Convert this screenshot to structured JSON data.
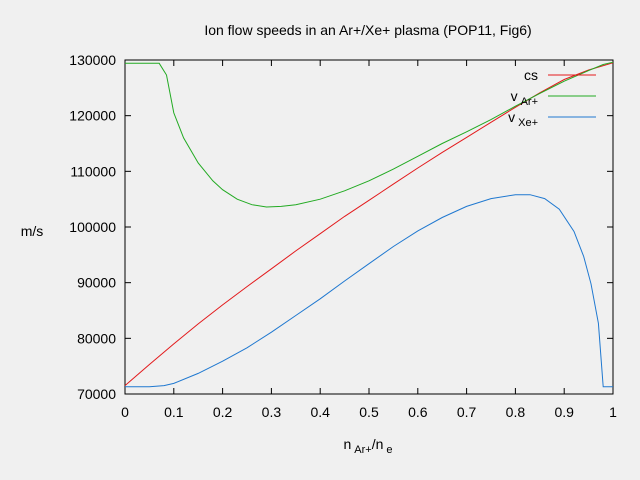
{
  "chart_data": {
    "type": "line",
    "title": "Ion flow speeds in an Ar+/Xe+ plasma (POP11, Fig6)",
    "ylabel": "m/s",
    "xlabel_parts": {
      "n1": "n",
      "sub1": "Ar+",
      "sep": "/n",
      "sub2": "e"
    },
    "xlim": [
      0,
      1
    ],
    "ylim": [
      70000,
      130000
    ],
    "x_ticks": [
      "0",
      "0.1",
      "0.2",
      "0.3",
      "0.4",
      "0.5",
      "0.6",
      "0.7",
      "0.8",
      "0.9",
      "1"
    ],
    "y_ticks": [
      "70000",
      "80000",
      "90000",
      "100000",
      "110000",
      "120000",
      "130000"
    ],
    "grid": false,
    "legend_position": "top-right",
    "series": [
      {
        "name": "cs",
        "legend_main": "cs",
        "legend_sub": "",
        "color": "#e31a1c",
        "points": [
          [
            0,
            71500
          ],
          [
            0.05,
            75300
          ],
          [
            0.1,
            79000
          ],
          [
            0.15,
            82600
          ],
          [
            0.2,
            86000
          ],
          [
            0.25,
            89300
          ],
          [
            0.3,
            92500
          ],
          [
            0.35,
            95700
          ],
          [
            0.4,
            98800
          ],
          [
            0.45,
            101900
          ],
          [
            0.5,
            104800
          ],
          [
            0.55,
            107700
          ],
          [
            0.6,
            110600
          ],
          [
            0.65,
            113400
          ],
          [
            0.7,
            116100
          ],
          [
            0.75,
            118800
          ],
          [
            0.8,
            121500
          ],
          [
            0.85,
            124100
          ],
          [
            0.9,
            126500
          ],
          [
            0.95,
            128200
          ],
          [
            1.0,
            129500
          ]
        ]
      },
      {
        "name": "v Ar+",
        "legend_main": "v",
        "legend_sub": "Ar+",
        "color": "#22aa22",
        "points": [
          [
            0,
            129400
          ],
          [
            0.07,
            129400
          ],
          [
            0.085,
            127300
          ],
          [
            0.1,
            120500
          ],
          [
            0.12,
            116000
          ],
          [
            0.15,
            111500
          ],
          [
            0.18,
            108300
          ],
          [
            0.2,
            106700
          ],
          [
            0.23,
            105000
          ],
          [
            0.26,
            104000
          ],
          [
            0.29,
            103600
          ],
          [
            0.32,
            103700
          ],
          [
            0.35,
            104000
          ],
          [
            0.4,
            105000
          ],
          [
            0.45,
            106500
          ],
          [
            0.5,
            108300
          ],
          [
            0.55,
            110400
          ],
          [
            0.6,
            112700
          ],
          [
            0.65,
            115000
          ],
          [
            0.7,
            117100
          ],
          [
            0.75,
            119300
          ],
          [
            0.8,
            121700
          ],
          [
            0.85,
            124000
          ],
          [
            0.9,
            126200
          ],
          [
            0.95,
            128100
          ],
          [
            0.98,
            129200
          ],
          [
            1.0,
            129600
          ]
        ]
      },
      {
        "name": "v Xe+",
        "legend_main": "v",
        "legend_sub": "Xe+",
        "color": "#1f78d0",
        "points": [
          [
            0,
            71300
          ],
          [
            0.05,
            71300
          ],
          [
            0.08,
            71500
          ],
          [
            0.1,
            71900
          ],
          [
            0.15,
            73700
          ],
          [
            0.2,
            75900
          ],
          [
            0.25,
            78300
          ],
          [
            0.3,
            81100
          ],
          [
            0.35,
            84100
          ],
          [
            0.4,
            87100
          ],
          [
            0.45,
            90300
          ],
          [
            0.5,
            93400
          ],
          [
            0.55,
            96500
          ],
          [
            0.6,
            99300
          ],
          [
            0.65,
            101700
          ],
          [
            0.7,
            103700
          ],
          [
            0.75,
            105100
          ],
          [
            0.8,
            105800
          ],
          [
            0.83,
            105800
          ],
          [
            0.86,
            105100
          ],
          [
            0.89,
            103200
          ],
          [
            0.92,
            99200
          ],
          [
            0.94,
            94700
          ],
          [
            0.955,
            89800
          ],
          [
            0.97,
            82700
          ],
          [
            0.98,
            71300
          ],
          [
            1.0,
            71300
          ]
        ]
      }
    ]
  }
}
